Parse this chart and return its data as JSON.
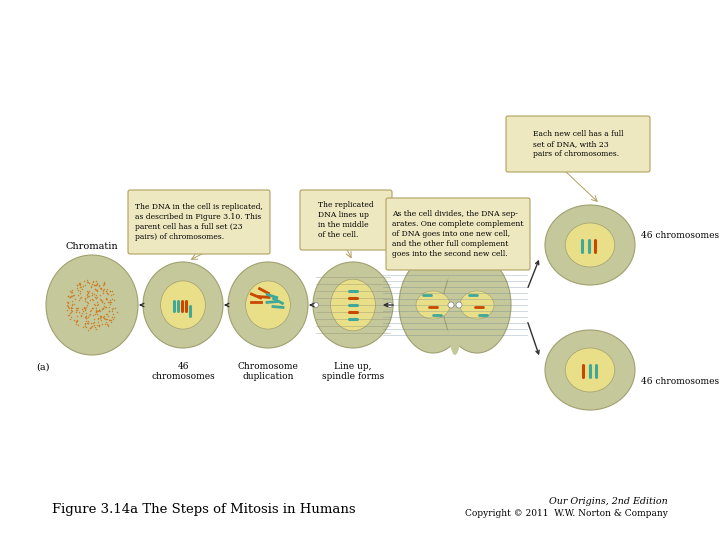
{
  "title_left": "Figure 3.14a The Steps of Mitosis in Humans",
  "title_right_line1": "Our Origins, 2nd Edition",
  "title_right_line2": "Copyright © 2011  W.W. Norton & Company",
  "background_color": "#ffffff",
  "fig_width": 7.2,
  "fig_height": 5.4,
  "dpi": 100,
  "label_a": "(a)",
  "label_chromatin": "Chromatin",
  "callout1_text": "The DNA in the cell is replicated,\nas described in Figure 3.10. This\nparent cell has a full set (23\npairs) of chromosomes.",
  "callout2_text": "The replicated\nDNA lines up\nin the middle\nof the cell.",
  "callout3_text": "As the cell divides, the DNA sep-\narates. One complete complement\nof DNA goes into one new cell,\nand the other full complement\ngoes into the second new cell.",
  "callout4_text": "Each new cell has a full\nset of DNA, with 23\npairs of chromosomes.",
  "label_46chrom1": "46\nchromosomes",
  "label_chrom_dup": "Chromosome\nduplication",
  "label_lineup": "Line up,\nspindle forms",
  "label_46chrom2": "46 chromosomes",
  "label_46chrom3": "46 chromosomes",
  "cell_outer_color": "#c5c89a",
  "cell_outer_edge": "#a0a070",
  "cell_inner_color": "#e8df88",
  "cell_chromatin_color": "#cc7a20",
  "arrow_color": "#303030",
  "callout_bg": "#ede8c0",
  "callout_border": "#b0a060",
  "chromosome_teal": "#40a898",
  "chromosome_orange": "#c84800",
  "spindle_color": "#8a8870",
  "spindle_color2": "#5a7890"
}
